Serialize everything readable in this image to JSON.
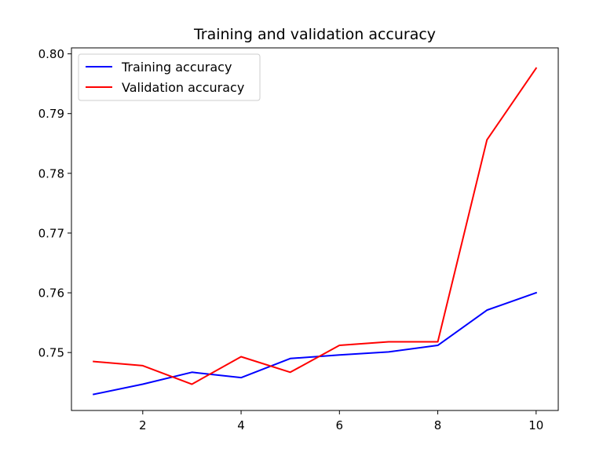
{
  "chart_data": {
    "type": "line",
    "title": "Training and validation accuracy",
    "xlabel": "",
    "ylabel": "",
    "x": [
      1,
      2,
      3,
      4,
      5,
      6,
      7,
      8,
      9,
      10
    ],
    "xlim": [
      0.55,
      10.45
    ],
    "ylim": [
      0.7403,
      0.801
    ],
    "xticks": [
      2,
      4,
      6,
      8,
      10
    ],
    "yticks": [
      0.75,
      0.76,
      0.77,
      0.78,
      0.79,
      0.8
    ],
    "xtick_labels": [
      "2",
      "4",
      "6",
      "8",
      "10"
    ],
    "ytick_labels": [
      "0.75",
      "0.76",
      "0.77",
      "0.78",
      "0.79",
      "0.80"
    ],
    "grid": false,
    "legend_position": "top-left",
    "series": [
      {
        "name": "Training accuracy",
        "color": "#0000ff",
        "values": [
          0.743,
          0.7447,
          0.7467,
          0.7458,
          0.749,
          0.7496,
          0.7501,
          0.7512,
          0.7571,
          0.76
        ]
      },
      {
        "name": "Validation accuracy",
        "color": "#ff0000",
        "values": [
          0.7485,
          0.7478,
          0.7447,
          0.7493,
          0.7467,
          0.7512,
          0.7518,
          0.7518,
          0.7856,
          0.7976
        ]
      }
    ]
  }
}
